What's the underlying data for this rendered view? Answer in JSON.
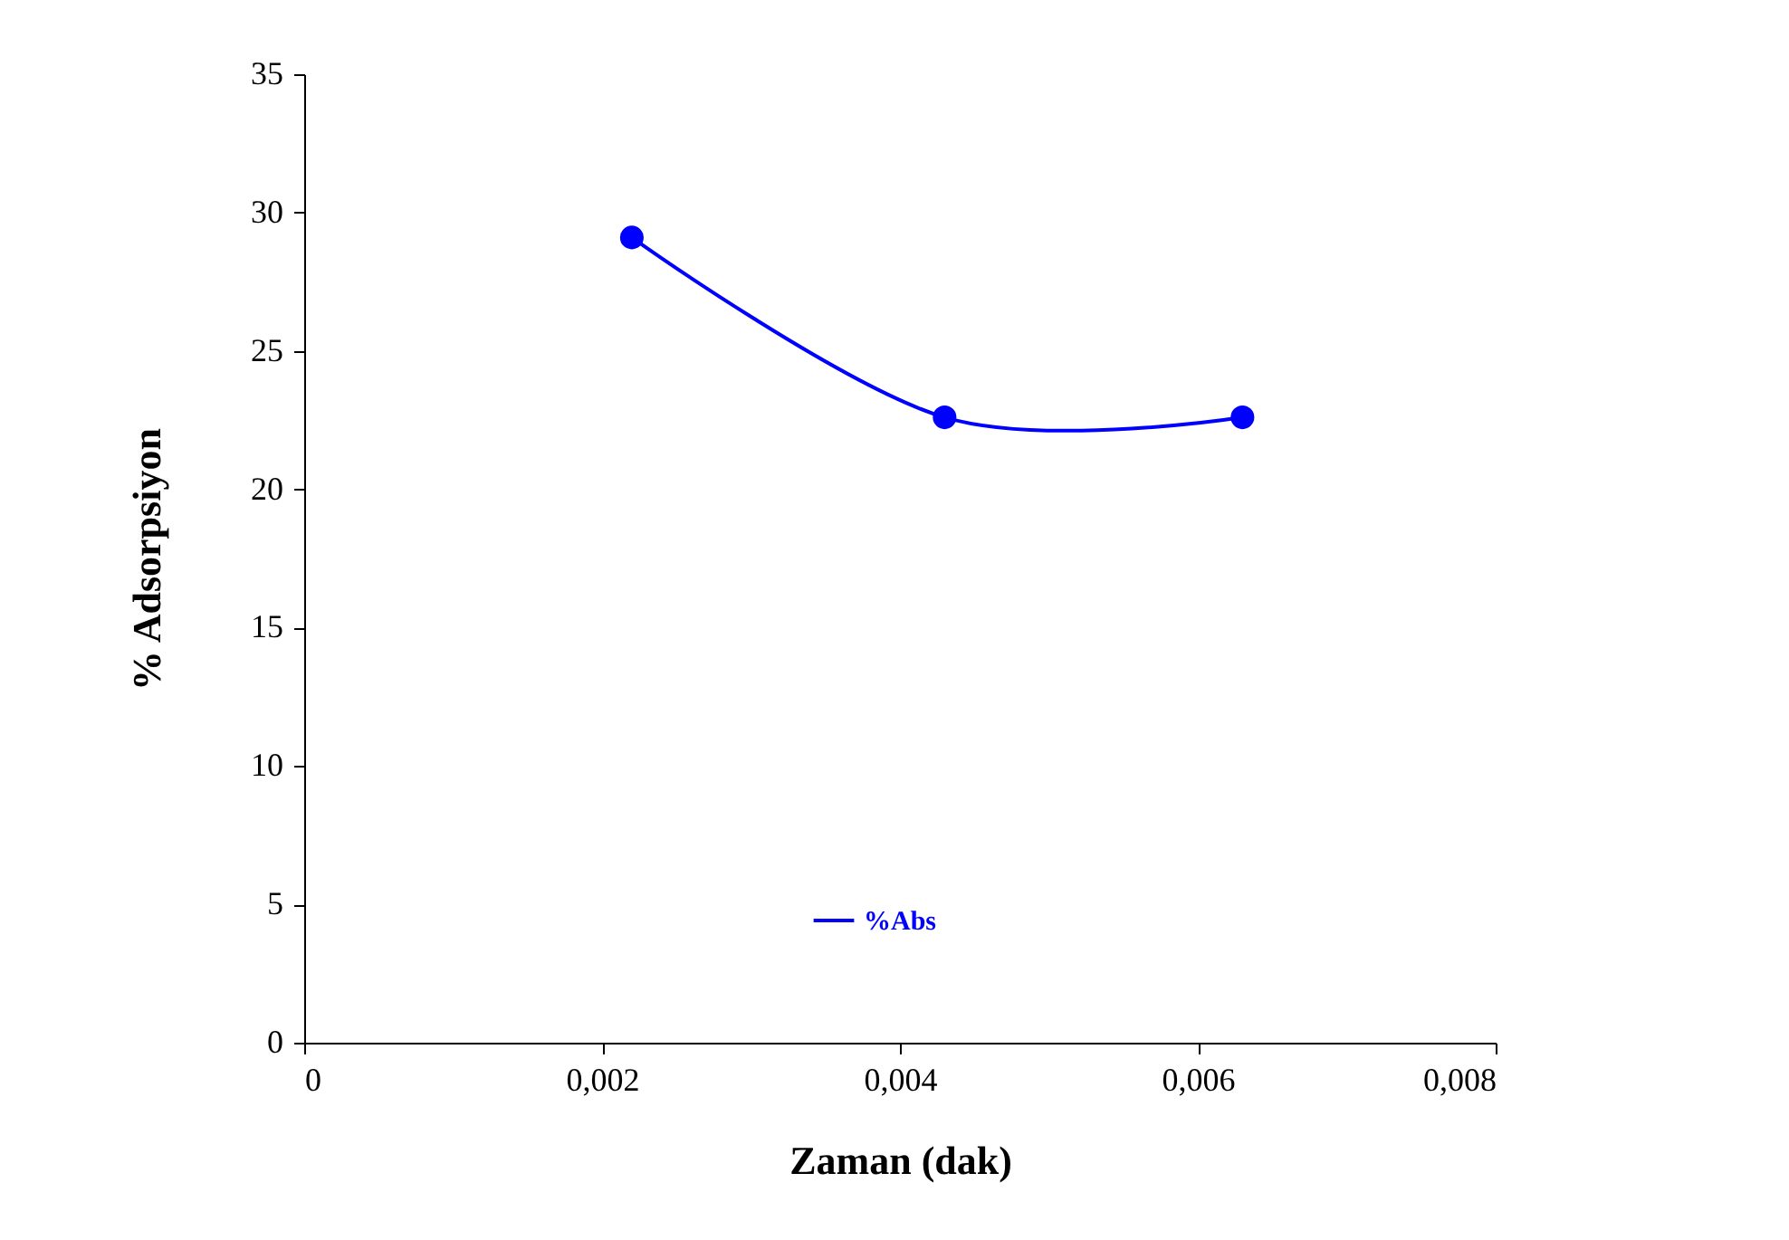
{
  "chart_data": {
    "type": "line",
    "xlabel": "Zaman (dak)",
    "ylabel": "% Adsorpsiyon",
    "x": [
      0.0022,
      0.0043,
      0.0063
    ],
    "series": [
      {
        "name": "%Abs",
        "color": "#0000ff",
        "values": [
          29.1,
          22.6,
          22.6
        ]
      }
    ],
    "xlim": [
      0,
      0.008
    ],
    "xticks": [
      0,
      {
        "value": 0.002,
        "label": "0,002"
      },
      {
        "value": 0.004,
        "label": "0,004"
      },
      {
        "value": 0.006,
        "label": "0,006"
      },
      {
        "value": 0.008,
        "label": "0,008"
      }
    ],
    "ylim": [
      0,
      35
    ],
    "yticks": [
      0,
      5,
      10,
      15,
      20,
      25,
      30,
      35
    ],
    "grid": false,
    "legend": "bottom",
    "marker": "circle",
    "line_style": "solid"
  }
}
